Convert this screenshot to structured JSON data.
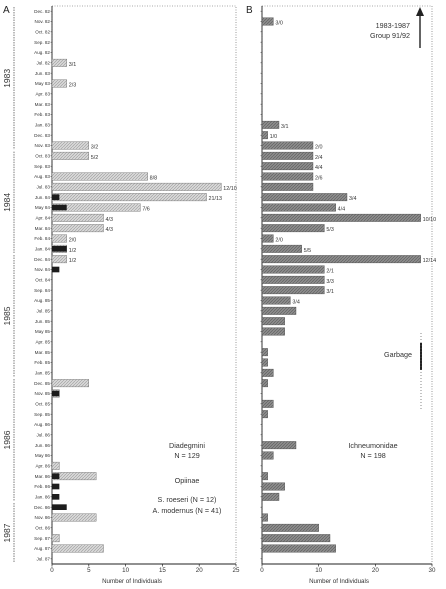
{
  "chart_data": [
    {
      "type": "bar",
      "orientation": "horizontal",
      "panel_label": "A",
      "xlabel": "Number of Individuals",
      "xticks": [
        "0",
        "5",
        "10",
        "15",
        "20",
        "25"
      ],
      "xlim": [
        0,
        25
      ],
      "categories": [
        "Dec. 82",
        "Nov. 82",
        "Oct. 82",
        "Sep. 82",
        "Aug. 82",
        "Jul. 82",
        "Jun. 83",
        "May 83",
        "Apr. 83",
        "Mar. 83",
        "Feb. 83",
        "Jan. 83",
        "Dec. 83",
        "Nov. 83",
        "Oct. 83",
        "Sep. 83",
        "Aug. 83",
        "Jul. 83",
        "Jun. 84",
        "May 84",
        "Apr. 84",
        "Mar. 84",
        "Feb. 84",
        "Jan. 84",
        "Dec. 84",
        "Nov. 84",
        "Oct. 84",
        "Sep. 84",
        "Aug. 85",
        "Jul. 85",
        "Jun. 85",
        "May 85",
        "Apr. 85",
        "Mar. 85",
        "Feb. 85",
        "Jan. 85",
        "Dec. 85",
        "Nov. 85",
        "Oct. 85",
        "Sep. 85",
        "Aug. 86",
        "Jul. 86",
        "Jun. 86",
        "May 86",
        "Apr. 86",
        "Mar. 86",
        "Feb. 86",
        "Jan. 86",
        "Dec. 86",
        "Nov. 86",
        "Oct. 86",
        "Sep. 87",
        "Aug. 87",
        "Jul. 87"
      ],
      "series": [
        {
          "values": [
            0,
            0,
            0,
            0,
            0,
            2,
            0,
            2,
            0,
            0,
            0,
            0,
            0,
            5,
            5,
            0,
            13,
            23,
            21,
            12,
            7,
            7,
            2,
            2,
            2,
            0,
            0,
            0,
            0,
            0,
            0,
            0,
            0,
            0,
            0,
            0,
            5,
            1,
            0,
            0,
            0,
            0,
            0,
            0,
            1,
            6,
            0,
            0,
            0,
            6,
            0,
            1,
            7,
            0
          ]
        },
        {
          "values": [
            0,
            0,
            0,
            0,
            0,
            0,
            0,
            0,
            0,
            0,
            0,
            0,
            0,
            0,
            0,
            0,
            0,
            0,
            1,
            2,
            0,
            0,
            0,
            2,
            0,
            1,
            0,
            0,
            0,
            0,
            0,
            0,
            0,
            0,
            0,
            0,
            0,
            1,
            0,
            0,
            0,
            0,
            0,
            0,
            0,
            1,
            1,
            1,
            2,
            0,
            0,
            0,
            0,
            0
          ]
        }
      ],
      "bar_labels": [
        "",
        "",
        "",
        "",
        "",
        "3/1",
        "",
        "2/3",
        "",
        "",
        "",
        "",
        "",
        "3/2",
        "5/2",
        "",
        "8/8",
        "12/10",
        "21/13",
        "7/6",
        "4/3",
        "4/3",
        "2/0",
        "1/2",
        "1/2",
        "",
        "",
        "",
        "",
        "",
        "",
        "",
        "",
        "",
        "",
        "",
        "",
        "",
        "",
        "",
        "",
        "",
        "",
        "",
        "",
        "",
        "",
        "",
        "",
        "",
        "",
        "",
        "",
        ""
      ],
      "year_labels": [
        "1983",
        "1984",
        "1985",
        "1986",
        "1987"
      ],
      "legend_lines": [
        "Diadegmini",
        "N = 129",
        "Opiinae",
        "S. roeseri (N = 12)",
        "A. modernus (N = 41)"
      ]
    },
    {
      "type": "bar",
      "orientation": "horizontal",
      "panel_label": "B",
      "xlabel": "Number of Individuals",
      "xticks": [
        "0",
        "10",
        "20",
        "30"
      ],
      "xlim": [
        0,
        30
      ],
      "series": [
        {
          "values": [
            0,
            2,
            0,
            0,
            0,
            0,
            0,
            0,
            0,
            0,
            0,
            3,
            1,
            9,
            9,
            9,
            9,
            9,
            15,
            13,
            28,
            11,
            2,
            7,
            28,
            11,
            11,
            11,
            5,
            6,
            4,
            4,
            0,
            1,
            1,
            2,
            1,
            0,
            2,
            1,
            0,
            0,
            6,
            2,
            0,
            1,
            4,
            3,
            0,
            1,
            10,
            12,
            13,
            0
          ]
        }
      ],
      "bar_labels": [
        "",
        "3/0",
        "",
        "",
        "",
        "",
        "",
        "",
        "",
        "",
        "",
        "3/1",
        "1/0",
        "2/0",
        "2/4",
        "4/4",
        "2/6",
        "",
        "3/4",
        "4/4",
        "10/10",
        "5/3",
        "2/0",
        "5/5",
        "12/14",
        "2/1",
        "3/3",
        "3/1",
        "3/4",
        "",
        "",
        "",
        "",
        "",
        "",
        "",
        "",
        "",
        "",
        "",
        "",
        "",
        "",
        "",
        "",
        "",
        "",
        "",
        "",
        "",
        "",
        "",
        "",
        ""
      ],
      "legend_lines": [
        "Ichneumonidae",
        "N = 198"
      ],
      "annotations": [
        "1983-1987",
        "Group 91/92",
        "Garbage"
      ]
    }
  ]
}
